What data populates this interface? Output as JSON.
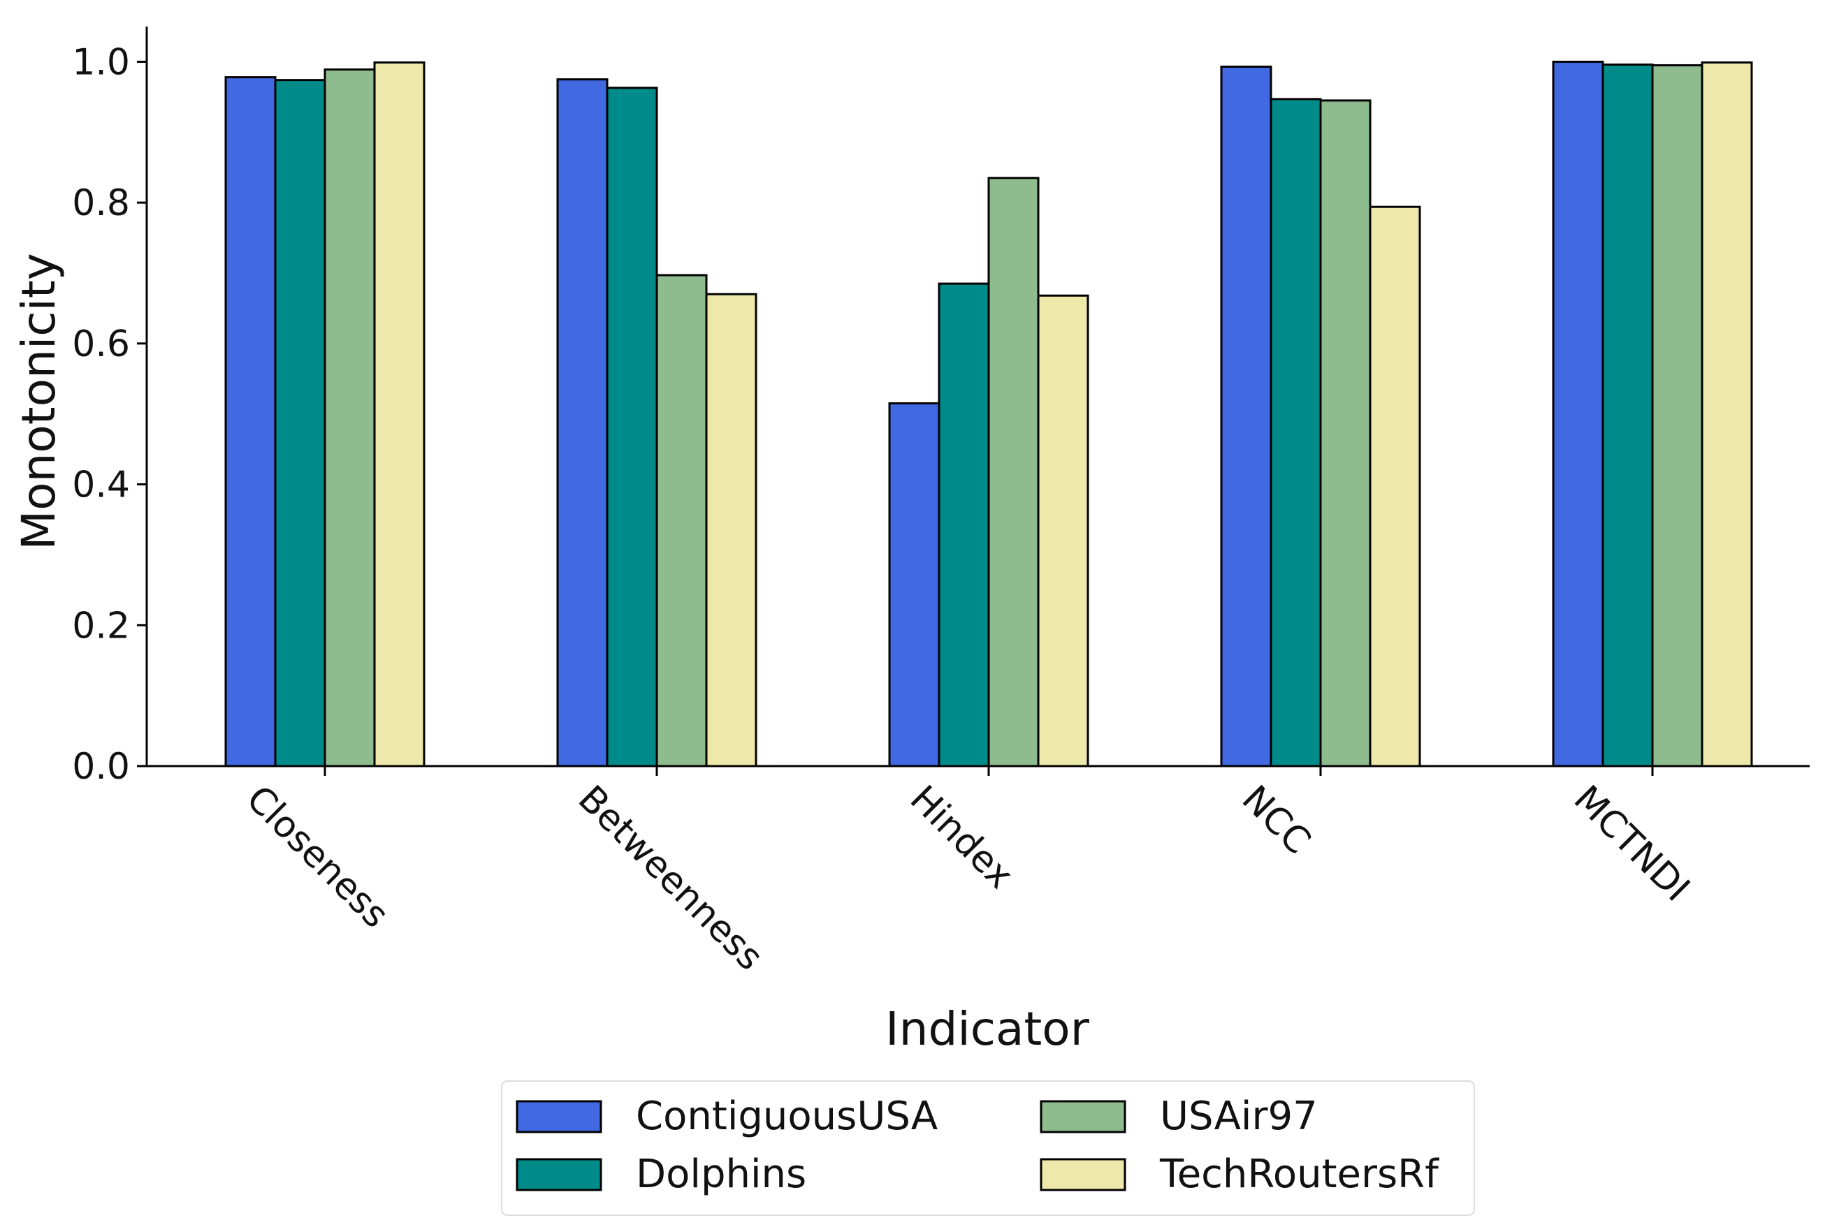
{
  "chart_data": {
    "type": "bar",
    "title": "",
    "xlabel": "Indicator",
    "ylabel": "Monotonicity",
    "ylim": [
      0,
      1.05
    ],
    "yticks": [
      0.0,
      0.2,
      0.4,
      0.6,
      0.8,
      1.0
    ],
    "ytick_labels": [
      "0.0",
      "0.2",
      "0.4",
      "0.6",
      "0.8",
      "1.0"
    ],
    "categories": [
      "Closeness",
      "Betweenness",
      "Hindex",
      "NCC",
      "MCTNDI"
    ],
    "series": [
      {
        "name": "ContiguousUSA",
        "color": "#4169E1",
        "values": [
          0.978,
          0.975,
          0.515,
          0.993,
          1.0
        ]
      },
      {
        "name": "Dolphins",
        "color": "#008B8B",
        "values": [
          0.974,
          0.963,
          0.685,
          0.947,
          0.996
        ]
      },
      {
        "name": "USAir97",
        "color": "#8FBC8F",
        "values": [
          0.989,
          0.697,
          0.835,
          0.945,
          0.995
        ]
      },
      {
        "name": "TechRoutersRf",
        "color": "#EEE8AA",
        "values": [
          0.999,
          0.67,
          0.668,
          0.794,
          0.999
        ]
      }
    ],
    "legend_position": "bottom-center",
    "legend_columns": 2,
    "grid": false
  }
}
